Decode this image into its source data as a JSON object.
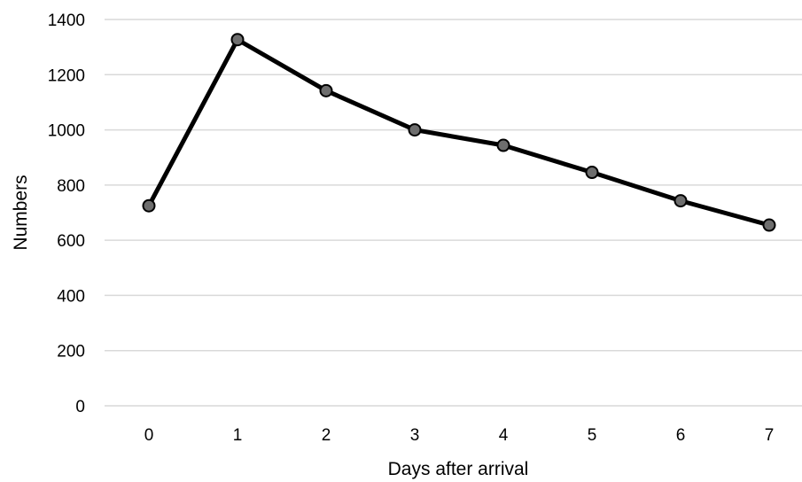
{
  "chart_data": {
    "type": "line",
    "title": "",
    "xlabel": "Days after arrival",
    "ylabel": "Numbers",
    "categories": [
      "0",
      "1",
      "2",
      "3",
      "4",
      "5",
      "6",
      "7"
    ],
    "series": [
      {
        "values": [
          725,
          1327,
          1142,
          1000,
          944,
          846,
          743,
          655
        ],
        "color": "#000000",
        "marker_fill": "#6e6e6e"
      }
    ],
    "ylim": [
      0,
      1400
    ],
    "yticks": [
      "0",
      "200",
      "400",
      "600",
      "800",
      "1000",
      "1200",
      "1400"
    ],
    "grid": "horizontal",
    "legend": "none"
  }
}
